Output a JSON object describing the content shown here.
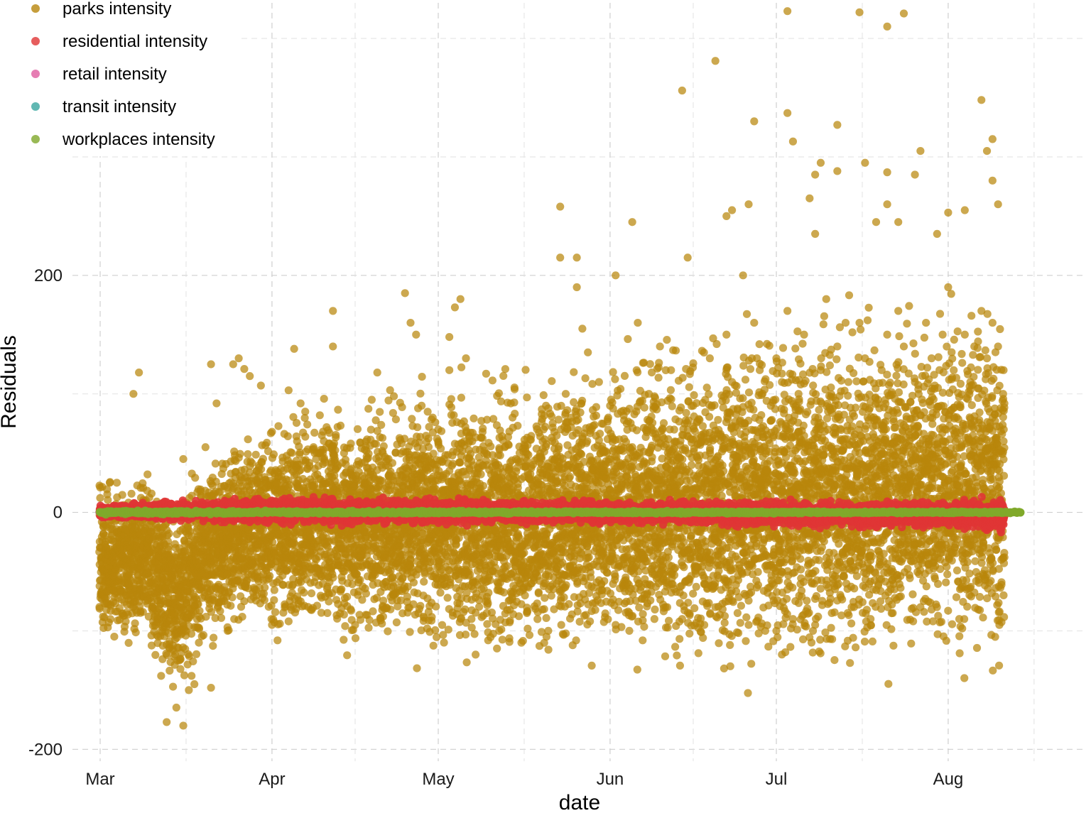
{
  "chart_data": {
    "type": "scatter",
    "title": "",
    "xlabel": "date",
    "ylabel": "Residuals",
    "x_type": "date",
    "xlim": [
      "2020-02-25",
      "2020-08-26"
    ],
    "ylim": [
      -210,
      430
    ],
    "x_ticks": [
      {
        "label": "Mar",
        "date": "2020-03-01"
      },
      {
        "label": "Apr",
        "date": "2020-04-01"
      },
      {
        "label": "May",
        "date": "2020-05-01"
      },
      {
        "label": "Jun",
        "date": "2020-06-01"
      },
      {
        "label": "Jul",
        "date": "2020-07-01"
      },
      {
        "label": "Aug",
        "date": "2020-08-01"
      }
    ],
    "y_ticks": [
      {
        "label": "-200",
        "value": -200
      },
      {
        "label": "0",
        "value": 0
      },
      {
        "label": "200",
        "value": 200
      }
    ],
    "grid": true,
    "legend_position": "top-left",
    "series": [
      {
        "name": "parks intensity",
        "color": "#B8860B",
        "marker": "circle",
        "trend": [
          {
            "date": "2020-03-01",
            "center": -45,
            "spread": 35
          },
          {
            "date": "2020-03-10",
            "center": -40,
            "spread": 40
          },
          {
            "date": "2020-03-15",
            "center": -80,
            "spread": 45
          },
          {
            "date": "2020-03-20",
            "center": -30,
            "spread": 45
          },
          {
            "date": "2020-04-01",
            "center": -10,
            "spread": 50
          },
          {
            "date": "2020-05-01",
            "center": -10,
            "spread": 60
          },
          {
            "date": "2020-06-01",
            "center": 0,
            "spread": 70
          },
          {
            "date": "2020-07-01",
            "center": 10,
            "spread": 80
          },
          {
            "date": "2020-08-01",
            "center": 20,
            "spread": 80
          },
          {
            "date": "2020-08-11",
            "center": 20,
            "spread": 80
          }
        ],
        "points": [
          {
            "date": "2020-03-01",
            "y": 21
          },
          {
            "date": "2020-03-04",
            "y": 25
          },
          {
            "date": "2020-03-07",
            "y": 100
          },
          {
            "date": "2020-03-08",
            "y": 118
          },
          {
            "date": "2020-03-12",
            "y": -138
          },
          {
            "date": "2020-03-13",
            "y": -177
          },
          {
            "date": "2020-03-16",
            "y": 45
          },
          {
            "date": "2020-03-16",
            "y": -180
          },
          {
            "date": "2020-03-17",
            "y": -150
          },
          {
            "date": "2020-03-18",
            "y": -145
          },
          {
            "date": "2020-03-20",
            "y": 55
          },
          {
            "date": "2020-03-21",
            "y": 125
          },
          {
            "date": "2020-03-21",
            "y": -148
          },
          {
            "date": "2020-03-22",
            "y": 92
          },
          {
            "date": "2020-03-24",
            "y": -100
          },
          {
            "date": "2020-03-25",
            "y": 125
          },
          {
            "date": "2020-03-26",
            "y": 130
          },
          {
            "date": "2020-03-27",
            "y": 121
          },
          {
            "date": "2020-03-27",
            "y": -75
          },
          {
            "date": "2020-03-28",
            "y": 115
          },
          {
            "date": "2020-03-30",
            "y": 107
          },
          {
            "date": "2020-04-01",
            "y": 68
          },
          {
            "date": "2020-04-01",
            "y": -95
          },
          {
            "date": "2020-04-02",
            "y": -108
          },
          {
            "date": "2020-04-04",
            "y": 103
          },
          {
            "date": "2020-04-04",
            "y": -92
          },
          {
            "date": "2020-04-05",
            "y": 138
          },
          {
            "date": "2020-04-07",
            "y": 85
          },
          {
            "date": "2020-04-08",
            "y": -82
          },
          {
            "date": "2020-04-10",
            "y": 65
          },
          {
            "date": "2020-04-11",
            "y": -85
          },
          {
            "date": "2020-04-12",
            "y": 170
          },
          {
            "date": "2020-04-12",
            "y": 140
          },
          {
            "date": "2020-04-14",
            "y": 50
          },
          {
            "date": "2020-04-16",
            "y": -95
          },
          {
            "date": "2020-04-19",
            "y": 95
          },
          {
            "date": "2020-04-20",
            "y": 118
          },
          {
            "date": "2020-04-21",
            "y": -80
          },
          {
            "date": "2020-04-23",
            "y": 98
          },
          {
            "date": "2020-04-25",
            "y": 185
          },
          {
            "date": "2020-04-26",
            "y": 160
          },
          {
            "date": "2020-04-27",
            "y": 150
          },
          {
            "date": "2020-04-28",
            "y": 90
          },
          {
            "date": "2020-04-29",
            "y": -98
          },
          {
            "date": "2020-04-30",
            "y": 80
          },
          {
            "date": "2020-05-01",
            "y": 70
          },
          {
            "date": "2020-05-01",
            "y": 60
          },
          {
            "date": "2020-05-02",
            "y": 45
          },
          {
            "date": "2020-05-03",
            "y": 120
          },
          {
            "date": "2020-05-03",
            "y": 148
          },
          {
            "date": "2020-05-04",
            "y": 173
          },
          {
            "date": "2020-05-05",
            "y": 180
          },
          {
            "date": "2020-05-06",
            "y": 130
          },
          {
            "date": "2020-05-07",
            "y": -90
          },
          {
            "date": "2020-05-09",
            "y": 40
          },
          {
            "date": "2020-05-10",
            "y": -108
          },
          {
            "date": "2020-05-12",
            "y": -100
          },
          {
            "date": "2020-05-13",
            "y": 55
          },
          {
            "date": "2020-05-15",
            "y": 45
          },
          {
            "date": "2020-05-16",
            "y": -110
          },
          {
            "date": "2020-05-17",
            "y": 97
          },
          {
            "date": "2020-05-17",
            "y": -85
          },
          {
            "date": "2020-05-20",
            "y": 70
          },
          {
            "date": "2020-05-22",
            "y": 45
          },
          {
            "date": "2020-05-24",
            "y": 100
          },
          {
            "date": "2020-05-25",
            "y": 80
          },
          {
            "date": "2020-05-26",
            "y": 190
          },
          {
            "date": "2020-05-26",
            "y": 215
          },
          {
            "date": "2020-05-27",
            "y": 155
          },
          {
            "date": "2020-05-28",
            "y": 135
          },
          {
            "date": "2020-05-30",
            "y": 110
          },
          {
            "date": "2020-06-01",
            "y": 90
          },
          {
            "date": "2020-06-02",
            "y": -95
          },
          {
            "date": "2020-06-03",
            "y": 85
          },
          {
            "date": "2020-06-04",
            "y": 75
          },
          {
            "date": "2020-06-05",
            "y": 55
          },
          {
            "date": "2020-06-06",
            "y": 160
          },
          {
            "date": "2020-06-08",
            "y": 100
          },
          {
            "date": "2020-06-09",
            "y": -90
          },
          {
            "date": "2020-06-10",
            "y": 140
          },
          {
            "date": "2020-06-11",
            "y": -80
          },
          {
            "date": "2020-06-12",
            "y": 120
          },
          {
            "date": "2020-06-14",
            "y": -90
          },
          {
            "date": "2020-06-16",
            "y": 90
          },
          {
            "date": "2020-06-18",
            "y": -95
          },
          {
            "date": "2020-06-19",
            "y": 130
          },
          {
            "date": "2020-06-20",
            "y": -80
          },
          {
            "date": "2020-06-22",
            "y": 150
          },
          {
            "date": "2020-06-23",
            "y": 110
          },
          {
            "date": "2020-06-24",
            "y": -85
          },
          {
            "date": "2020-06-25",
            "y": 200
          },
          {
            "date": "2020-06-26",
            "y": -95
          },
          {
            "date": "2020-06-27",
            "y": 160
          },
          {
            "date": "2020-06-28",
            "y": 120
          },
          {
            "date": "2020-06-29",
            "y": -100
          },
          {
            "date": "2020-06-30",
            "y": 90
          },
          {
            "date": "2020-07-01",
            "y": 130
          },
          {
            "date": "2020-07-02",
            "y": -120
          },
          {
            "date": "2020-07-02",
            "y": 110
          },
          {
            "date": "2020-07-03",
            "y": 170
          },
          {
            "date": "2020-07-04",
            "y": -90
          },
          {
            "date": "2020-07-05",
            "y": 100
          },
          {
            "date": "2020-07-06",
            "y": 150
          },
          {
            "date": "2020-07-08",
            "y": -95
          },
          {
            "date": "2020-07-09",
            "y": 120
          },
          {
            "date": "2020-07-10",
            "y": 180
          },
          {
            "date": "2020-07-11",
            "y": -85
          },
          {
            "date": "2020-07-12",
            "y": 140
          },
          {
            "date": "2020-07-14",
            "y": 110
          },
          {
            "date": "2020-07-15",
            "y": -80
          },
          {
            "date": "2020-07-16",
            "y": 160
          },
          {
            "date": "2020-07-17",
            "y": 130
          },
          {
            "date": "2020-07-18",
            "y": -90
          },
          {
            "date": "2020-07-20",
            "y": 120
          },
          {
            "date": "2020-07-21",
            "y": 150
          },
          {
            "date": "2020-07-22",
            "y": -85
          },
          {
            "date": "2020-07-23",
            "y": 170
          },
          {
            "date": "2020-07-24",
            "y": 140
          },
          {
            "date": "2020-07-26",
            "y": 110
          },
          {
            "date": "2020-07-27",
            "y": -80
          },
          {
            "date": "2020-07-28",
            "y": 160
          },
          {
            "date": "2020-07-29",
            "y": 130
          },
          {
            "date": "2020-07-31",
            "y": 150
          },
          {
            "date": "2020-08-01",
            "y": 190
          },
          {
            "date": "2020-08-02",
            "y": 120
          },
          {
            "date": "2020-08-03",
            "y": -90
          },
          {
            "date": "2020-08-04",
            "y": 150
          },
          {
            "date": "2020-08-05",
            "y": 110
          },
          {
            "date": "2020-08-07",
            "y": 170
          },
          {
            "date": "2020-08-08",
            "y": 130
          },
          {
            "date": "2020-08-09",
            "y": 160
          },
          {
            "date": "2020-08-10",
            "y": 140
          },
          {
            "date": "2020-08-11",
            "y": 120
          },
          {
            "date": "2020-08-11",
            "y": 60
          },
          {
            "date": "2020-08-11",
            "y": -70
          },
          {
            "date": "2020-06-14",
            "y": 356
          },
          {
            "date": "2020-06-20",
            "y": 381
          },
          {
            "date": "2020-06-27",
            "y": 330
          },
          {
            "date": "2020-07-03",
            "y": 423
          },
          {
            "date": "2020-07-03",
            "y": 337
          },
          {
            "date": "2020-07-04",
            "y": 313
          },
          {
            "date": "2020-07-12",
            "y": 327
          },
          {
            "date": "2020-07-16",
            "y": 422
          },
          {
            "date": "2020-07-21",
            "y": 410
          },
          {
            "date": "2020-07-24",
            "y": 421
          },
          {
            "date": "2020-08-07",
            "y": 348
          },
          {
            "date": "2020-08-09",
            "y": 315
          },
          {
            "date": "2020-07-08",
            "y": 285
          },
          {
            "date": "2020-07-09",
            "y": 295
          },
          {
            "date": "2020-07-12",
            "y": 288
          },
          {
            "date": "2020-07-17",
            "y": 295
          },
          {
            "date": "2020-07-21",
            "y": 287
          },
          {
            "date": "2020-07-26",
            "y": 285
          },
          {
            "date": "2020-07-27",
            "y": 305
          },
          {
            "date": "2020-08-04",
            "y": 255
          },
          {
            "date": "2020-08-08",
            "y": 305
          },
          {
            "date": "2020-08-09",
            "y": 280
          },
          {
            "date": "2020-08-10",
            "y": 260
          },
          {
            "date": "2020-05-23",
            "y": 258
          },
          {
            "date": "2020-06-05",
            "y": 245
          },
          {
            "date": "2020-06-23",
            "y": 255
          },
          {
            "date": "2020-05-23",
            "y": 215
          },
          {
            "date": "2020-06-02",
            "y": 200
          },
          {
            "date": "2020-06-15",
            "y": 215
          },
          {
            "date": "2020-06-22",
            "y": 250
          },
          {
            "date": "2020-06-26",
            "y": 260
          },
          {
            "date": "2020-07-07",
            "y": 265
          },
          {
            "date": "2020-07-08",
            "y": 235
          },
          {
            "date": "2020-07-19",
            "y": 245
          },
          {
            "date": "2020-07-21",
            "y": 260
          },
          {
            "date": "2020-07-23",
            "y": 245
          },
          {
            "date": "2020-07-30",
            "y": 235
          },
          {
            "date": "2020-08-01",
            "y": 253
          }
        ]
      },
      {
        "name": "residential intensity",
        "color": "#E03535",
        "marker": "circle",
        "trend": [
          {
            "date": "2020-03-01",
            "center": 1,
            "spread": 3
          },
          {
            "date": "2020-04-01",
            "center": 1,
            "spread": 6
          },
          {
            "date": "2020-05-01",
            "center": 1,
            "spread": 6
          },
          {
            "date": "2020-06-01",
            "center": 0,
            "spread": 5
          },
          {
            "date": "2020-07-01",
            "center": -1,
            "spread": 6
          },
          {
            "date": "2020-08-01",
            "center": -2,
            "spread": 6
          },
          {
            "date": "2020-08-11",
            "center": -3,
            "spread": 8
          }
        ],
        "points": []
      },
      {
        "name": "retail intensity",
        "color": "#E05CA0",
        "marker": "circle",
        "trend": [
          {
            "date": "2020-03-01",
            "center": 0,
            "spread": 1
          },
          {
            "date": "2020-08-11",
            "center": 0,
            "spread": 1
          }
        ],
        "points": []
      },
      {
        "name": "transit intensity",
        "color": "#3AA6A0",
        "marker": "circle",
        "trend": [
          {
            "date": "2020-03-01",
            "center": 0,
            "spread": 1
          },
          {
            "date": "2020-08-11",
            "center": 0,
            "spread": 1
          }
        ],
        "points": []
      },
      {
        "name": "workplaces intensity",
        "color": "#7FA82A",
        "marker": "circle",
        "trend": [
          {
            "date": "2020-03-01",
            "center": 0,
            "spread": 1
          },
          {
            "date": "2020-08-14",
            "center": 0,
            "spread": 0.5
          }
        ],
        "points": [
          {
            "date": "2020-08-12",
            "y": 0
          },
          {
            "date": "2020-08-13",
            "y": 0
          },
          {
            "date": "2020-08-14",
            "y": 0
          }
        ]
      }
    ]
  }
}
